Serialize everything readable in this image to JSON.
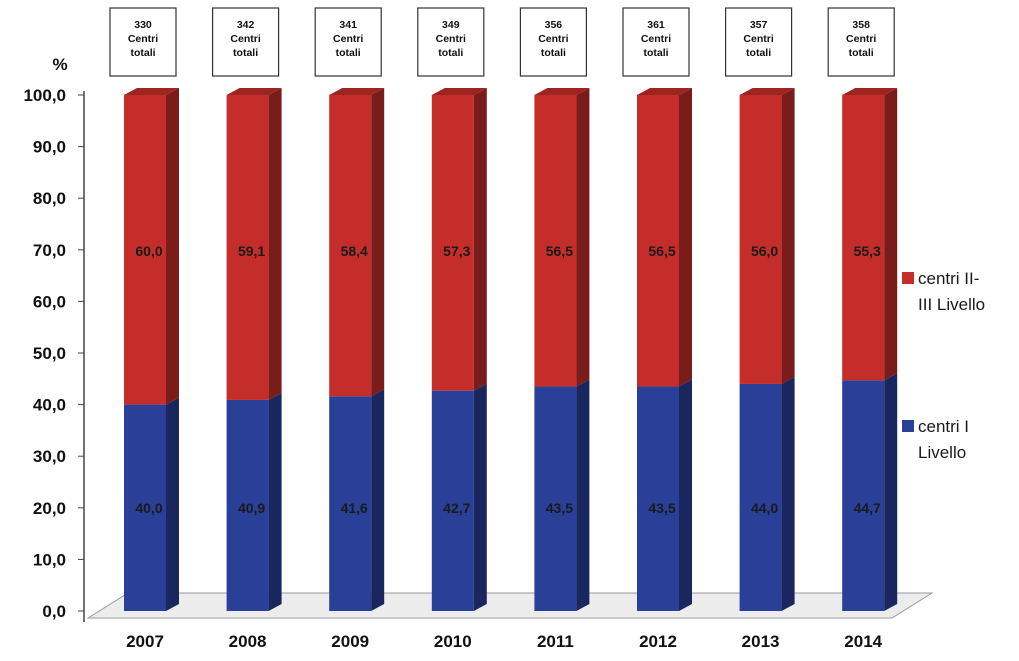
{
  "chart_data": {
    "type": "bar",
    "stacked": true,
    "unit_label": "%",
    "categories": [
      "2007",
      "2008",
      "2009",
      "2010",
      "2011",
      "2012",
      "2013",
      "2014"
    ],
    "series": [
      {
        "name": "centri I Livello",
        "values": [
          40.0,
          40.9,
          41.6,
          42.7,
          43.5,
          43.5,
          44.0,
          44.7
        ],
        "labels": [
          "40,0",
          "40,9",
          "41,6",
          "42,7",
          "43,5",
          "43,5",
          "44,0",
          "44,7"
        ],
        "color": "#2a3f97"
      },
      {
        "name": "centri II-III Livello",
        "values": [
          60.0,
          59.1,
          58.4,
          57.3,
          56.5,
          56.5,
          56.0,
          55.3
        ],
        "labels": [
          "60,0",
          "59,1",
          "58,4",
          "57,3",
          "56,5",
          "56,5",
          "56,0",
          "55,3"
        ],
        "color": "#c42d29"
      }
    ],
    "totals": [
      {
        "count": "330",
        "line2": "Centri",
        "line3": "totali"
      },
      {
        "count": "342",
        "line2": "Centri",
        "line3": "totali"
      },
      {
        "count": "341",
        "line2": "Centri",
        "line3": "totali"
      },
      {
        "count": "349",
        "line2": "Centri",
        "line3": "totali"
      },
      {
        "count": "356",
        "line2": "Centri",
        "line3": "totali"
      },
      {
        "count": "361",
        "line2": "Centri",
        "line3": "totali"
      },
      {
        "count": "357",
        "line2": "Centri",
        "line3": "totali"
      },
      {
        "count": "358",
        "line2": "Centri",
        "line3": "totali"
      }
    ],
    "y_ticks": [
      "0,0",
      "10,0",
      "20,0",
      "30,0",
      "40,0",
      "50,0",
      "60,0",
      "70,0",
      "80,0",
      "90,0",
      "100,0"
    ],
    "ylim": [
      0,
      100
    ],
    "grid": false,
    "legend": {
      "placement": "right",
      "items": [
        {
          "lines": [
            "centri II-",
            "III Livello"
          ],
          "color": "#c42d29"
        },
        {
          "lines": [
            "centri I",
            "Livello"
          ],
          "color": "#2a3f97"
        }
      ]
    }
  }
}
